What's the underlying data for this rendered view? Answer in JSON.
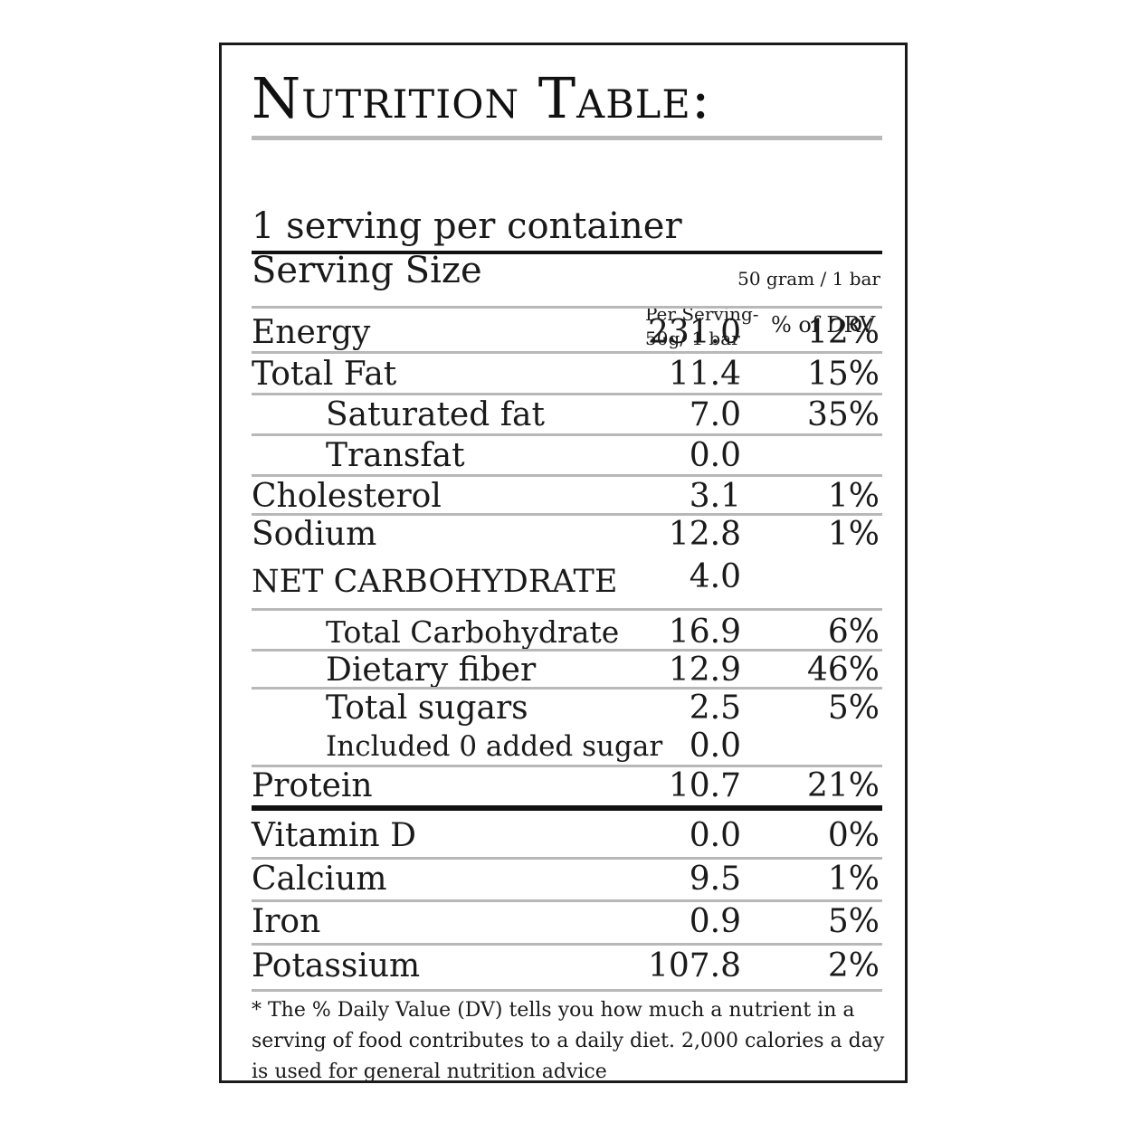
{
  "title": "Nutrition Table:",
  "servings_per_container": "1 serving per container",
  "serving_size_label": "Serving Size",
  "serving_size_value": "50 gram / 1 bar",
  "columns": {
    "per_serving_line1": "Per Serving-",
    "per_serving_line2": "50g/ 1 bar",
    "dv": "% of DRV"
  },
  "rows": [
    {
      "name": "Energy",
      "value": "231.0",
      "dv": "12%"
    },
    {
      "name": "Total Fat",
      "value": "11.4",
      "dv": "15%"
    },
    {
      "name": "Saturated fat",
      "value": "7.0",
      "dv": "35%"
    },
    {
      "name": "Transfat",
      "value": "0.0",
      "dv": ""
    },
    {
      "name": "Cholesterol",
      "value": "3.1",
      "dv": "1%"
    },
    {
      "name": "Sodium",
      "value": "12.8",
      "dv": "1%"
    },
    {
      "name": "NET CARBOHYDRATE",
      "value": "4.0",
      "dv": ""
    },
    {
      "name": "Total Carbohydrate",
      "value": "16.9",
      "dv": "6%"
    },
    {
      "name": "Dietary fiber",
      "value": "12.9",
      "dv": "46%"
    },
    {
      "name": "Total sugars",
      "value": "2.5",
      "dv": "5%"
    },
    {
      "name": "Included 0 added sugar",
      "value": "0.0",
      "dv": ""
    },
    {
      "name": "Protein",
      "value": "10.7",
      "dv": "21%"
    },
    {
      "name": "Vitamin D",
      "value": "0.0",
      "dv": "0%"
    },
    {
      "name": "Calcium",
      "value": "9.5",
      "dv": "1%"
    },
    {
      "name": "Iron",
      "value": "0.9",
      "dv": "5%"
    },
    {
      "name": "Potassium",
      "value": "107.8",
      "dv": "2%"
    }
  ],
  "footnote": "* The % Daily Value (DV) tells you how much a nutrient in a serving of food contributes to a daily diet. 2,000 calories a day is used for general nutrition advice"
}
